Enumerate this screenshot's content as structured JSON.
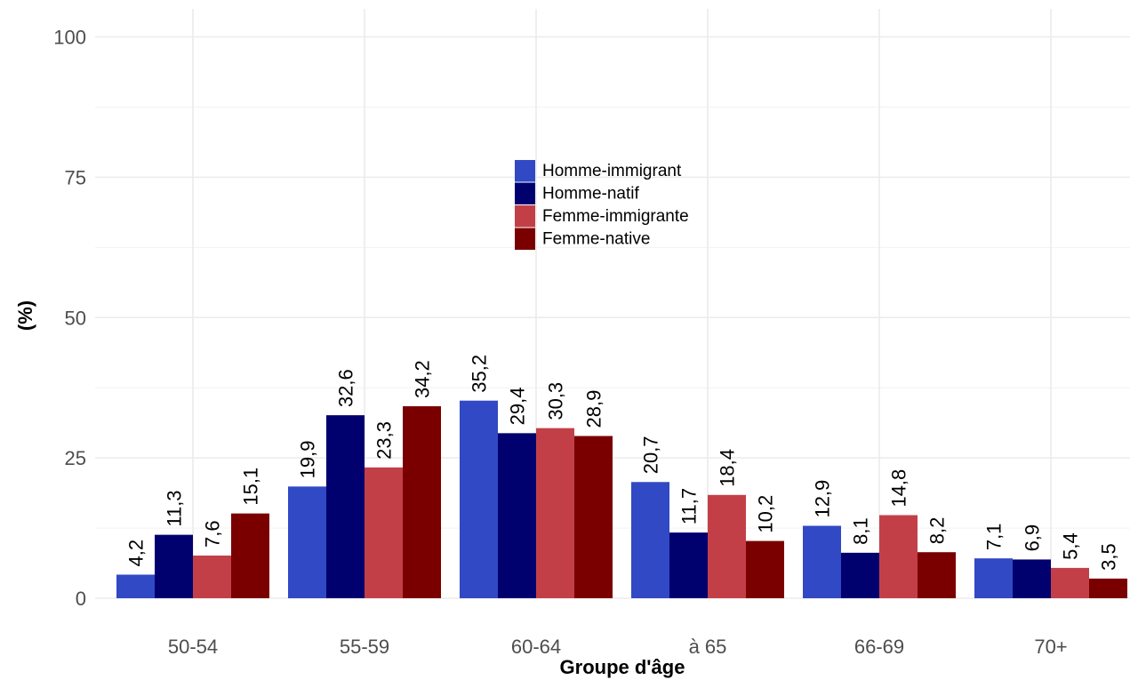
{
  "chart_data": {
    "type": "bar",
    "title": "",
    "xlabel": "Groupe d'âge",
    "ylabel": "(%)",
    "categories": [
      "50-54",
      "55-59",
      "60-64",
      "à 65",
      "66-69",
      "70+"
    ],
    "ylim": [
      0,
      100
    ],
    "yticks": [
      "0",
      "25",
      "50",
      "75",
      "100"
    ],
    "grid": true,
    "legend_position": "top-center",
    "series": [
      {
        "name": "Homme-immigrant",
        "color": "#3149c4",
        "values": [
          4.2,
          19.9,
          35.2,
          20.7,
          12.9,
          7.1
        ],
        "labels": [
          "4,2",
          "19,9",
          "35,2",
          "20,7",
          "12,9",
          "7,1"
        ]
      },
      {
        "name": "Homme-natif",
        "color": "#00006e",
        "values": [
          11.3,
          32.6,
          29.4,
          11.7,
          8.1,
          6.9
        ],
        "labels": [
          "11,3",
          "32,6",
          "29,4",
          "11,7",
          "8,1",
          "6,9"
        ]
      },
      {
        "name": "Femme-immigrante",
        "color": "#c33f48",
        "values": [
          7.6,
          23.3,
          30.3,
          18.4,
          14.8,
          5.4
        ],
        "labels": [
          "7,6",
          "23,3",
          "30,3",
          "18,4",
          "14,8",
          "5,4"
        ]
      },
      {
        "name": "Femme-native",
        "color": "#7a0000",
        "values": [
          15.1,
          34.2,
          28.9,
          10.2,
          8.2,
          3.5
        ],
        "labels": [
          "15,1",
          "34,2",
          "28,9",
          "10,2",
          "8,2",
          "3,5"
        ]
      }
    ]
  }
}
